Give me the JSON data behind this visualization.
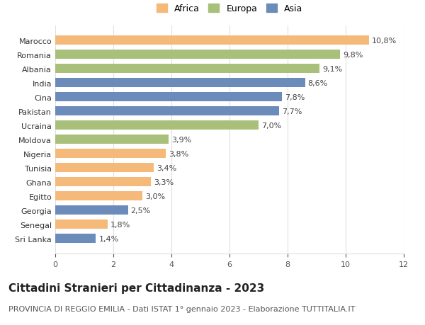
{
  "categories": [
    "Sri Lanka",
    "Senegal",
    "Georgia",
    "Egitto",
    "Ghana",
    "Tunisia",
    "Nigeria",
    "Moldova",
    "Ucraina",
    "Pakistan",
    "Cina",
    "India",
    "Albania",
    "Romania",
    "Marocco"
  ],
  "values": [
    1.4,
    1.8,
    2.5,
    3.0,
    3.3,
    3.4,
    3.8,
    3.9,
    7.0,
    7.7,
    7.8,
    8.6,
    9.1,
    9.8,
    10.8
  ],
  "colors": [
    "#6b8cba",
    "#f5b97a",
    "#6b8cba",
    "#f5b97a",
    "#f5b97a",
    "#f5b97a",
    "#f5b97a",
    "#a8c07a",
    "#a8c07a",
    "#6b8cba",
    "#6b8cba",
    "#6b8cba",
    "#a8c07a",
    "#a8c07a",
    "#f5b97a"
  ],
  "labels": [
    "1,4%",
    "1,8%",
    "2,5%",
    "3,0%",
    "3,3%",
    "3,4%",
    "3,8%",
    "3,9%",
    "7,0%",
    "7,7%",
    "7,8%",
    "8,6%",
    "9,1%",
    "9,8%",
    "10,8%"
  ],
  "legend": [
    {
      "label": "Africa",
      "color": "#f5b97a"
    },
    {
      "label": "Europa",
      "color": "#a8c07a"
    },
    {
      "label": "Asia",
      "color": "#6b8cba"
    }
  ],
  "xlim": [
    0,
    12
  ],
  "xticks": [
    0,
    2,
    4,
    6,
    8,
    10,
    12
  ],
  "title": "Cittadini Stranieri per Cittadinanza - 2023",
  "subtitle": "PROVINCIA DI REGGIO EMILIA - Dati ISTAT 1° gennaio 2023 - Elaborazione TUTTITALIA.IT",
  "title_fontsize": 11,
  "subtitle_fontsize": 8,
  "label_fontsize": 8,
  "tick_fontsize": 8,
  "background_color": "#ffffff",
  "grid_color": "#e0e0e0",
  "bar_height": 0.65
}
